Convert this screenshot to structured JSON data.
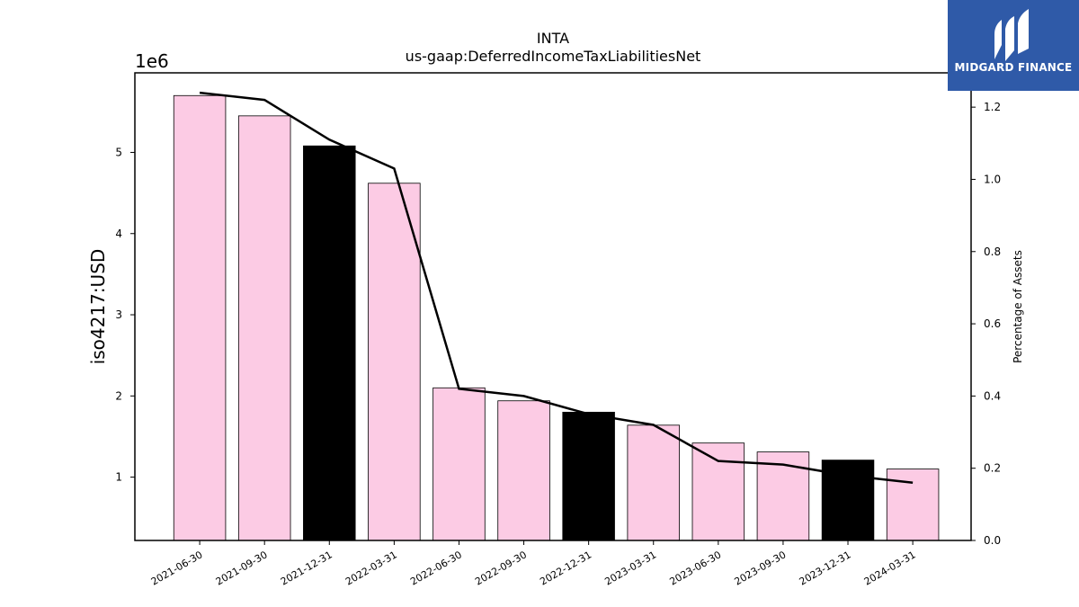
{
  "brand": {
    "name": "MIDGARD FINANCE",
    "color": "#2f5aa8"
  },
  "chart_data": {
    "type": "bar",
    "title": "INTA",
    "subtitle": "us-gaap:DeferredIncomeTaxLiabilitiesNet",
    "ylabel": "iso4217:USD",
    "y_multiplier": "1e6",
    "y2label": "Percentage of Assets",
    "categories": [
      "2021-06-30",
      "2021-09-30",
      "2021-12-31",
      "2022-03-31",
      "2022-06-30",
      "2022-09-30",
      "2022-12-31",
      "2023-03-31",
      "2023-06-30",
      "2023-09-30",
      "2023-12-31",
      "2024-03-31"
    ],
    "values": [
      5700000,
      5450000,
      5080000,
      4620000,
      2100000,
      1940000,
      1800000,
      1640000,
      1420000,
      1310000,
      1210000,
      1100000
    ],
    "bar_colors": [
      "#fccbe4",
      "#fccbe4",
      "#000000",
      "#fccbe4",
      "#fccbe4",
      "#fccbe4",
      "#000000",
      "#fccbe4",
      "#fccbe4",
      "#fccbe4",
      "#000000",
      "#fccbe4"
    ],
    "line_series": {
      "name": "",
      "values": [
        1.24,
        1.22,
        1.11,
        1.03,
        0.42,
        0.4,
        0.35,
        0.32,
        0.22,
        0.21,
        0.18,
        0.16
      ],
      "color": "#000000"
    },
    "ylim": [
      220000,
      5980000
    ],
    "yticks": [
      1,
      2,
      3,
      4,
      5
    ],
    "y2lim": [
      0.0,
      1.295
    ],
    "y2ticks": [
      "0.0",
      "0.2",
      "0.4",
      "0.6",
      "0.8",
      "1.0",
      "1.2"
    ],
    "grid": false
  }
}
